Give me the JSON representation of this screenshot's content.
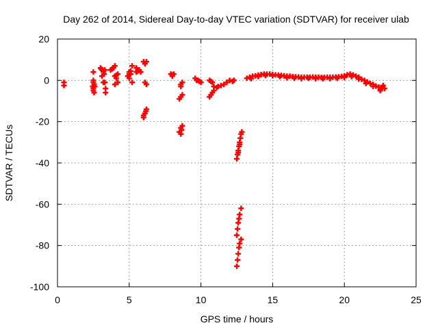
{
  "chart_data": {
    "type": "scatter",
    "title": "Day 262 of 2014, Sidereal Day-to-day VTEC variation (SDTVAR) for receiver ulab",
    "xlabel": "GPS time / hours",
    "ylabel": "SDTVAR / TECUs",
    "xlim": [
      0,
      25
    ],
    "ylim": [
      -100,
      20
    ],
    "xticks": [
      0,
      5,
      10,
      15,
      20,
      25
    ],
    "yticks": [
      20,
      0,
      -20,
      -40,
      -60,
      -80,
      -100
    ],
    "grid": true,
    "marker": "plus",
    "color": "#ff0000",
    "points": [
      [
        0.45,
        -1
      ],
      [
        0.45,
        -2.5
      ],
      [
        2.5,
        4
      ],
      [
        2.5,
        0
      ],
      [
        2.5,
        -1
      ],
      [
        2.55,
        -2
      ],
      [
        2.45,
        -3
      ],
      [
        2.5,
        -4
      ],
      [
        2.5,
        -5
      ],
      [
        2.55,
        -6
      ],
      [
        2.6,
        -3
      ],
      [
        3.0,
        6
      ],
      [
        3.05,
        5.5
      ],
      [
        3.1,
        5
      ],
      [
        3.2,
        4
      ],
      [
        3.25,
        3
      ],
      [
        3.1,
        2
      ],
      [
        3.2,
        -1
      ],
      [
        3.3,
        -1
      ],
      [
        3.35,
        -4
      ],
      [
        3.35,
        -6
      ],
      [
        3.3,
        5
      ],
      [
        3.7,
        5
      ],
      [
        3.8,
        5.5
      ],
      [
        3.9,
        6
      ],
      [
        4.0,
        7
      ],
      [
        4.2,
        3
      ],
      [
        4.1,
        2.5
      ],
      [
        4.0,
        2
      ],
      [
        4.1,
        1
      ],
      [
        4.2,
        -1
      ],
      [
        4.0,
        -2
      ],
      [
        4.9,
        2
      ],
      [
        5.0,
        3
      ],
      [
        5.0,
        4
      ],
      [
        5.1,
        3
      ],
      [
        5.0,
        1
      ],
      [
        5.2,
        7
      ],
      [
        5.2,
        -1
      ],
      [
        5.1,
        4.5
      ],
      [
        5.5,
        4
      ],
      [
        5.6,
        5
      ],
      [
        5.7,
        5
      ],
      [
        5.8,
        4
      ],
      [
        5.5,
        6
      ],
      [
        5.6,
        4.5
      ],
      [
        6.0,
        9
      ],
      [
        6.1,
        8
      ],
      [
        6.2,
        9
      ],
      [
        6.1,
        -1
      ],
      [
        6.2,
        -2
      ],
      [
        6.0,
        -17
      ],
      [
        6.1,
        -16
      ],
      [
        6.2,
        -14
      ],
      [
        6.0,
        -18
      ],
      [
        6.15,
        -15
      ],
      [
        7.9,
        3
      ],
      [
        8.0,
        2
      ],
      [
        8.1,
        3
      ],
      [
        8.0,
        2.5
      ],
      [
        8.6,
        -2
      ],
      [
        8.6,
        -3
      ],
      [
        8.7,
        -1
      ],
      [
        8.6,
        -8
      ],
      [
        8.7,
        -7
      ],
      [
        8.5,
        -9
      ],
      [
        8.6,
        -23
      ],
      [
        8.5,
        -25
      ],
      [
        8.7,
        -22
      ],
      [
        8.6,
        -26
      ],
      [
        8.65,
        -24
      ],
      [
        9.6,
        1
      ],
      [
        9.7,
        0
      ],
      [
        9.8,
        0
      ],
      [
        9.9,
        -0.5
      ],
      [
        10.0,
        -1
      ],
      [
        10.6,
        0
      ],
      [
        10.7,
        -0.5
      ],
      [
        10.8,
        -1
      ],
      [
        10.9,
        -3
      ],
      [
        10.7,
        -7
      ],
      [
        10.8,
        -6
      ],
      [
        10.9,
        -5
      ],
      [
        10.6,
        -8
      ],
      [
        11.1,
        -3.5
      ],
      [
        11.2,
        -3
      ],
      [
        11.4,
        -2.5
      ],
      [
        11.6,
        -2
      ],
      [
        11.8,
        -1
      ],
      [
        12.0,
        0
      ],
      [
        12.2,
        -0.5
      ],
      [
        12.3,
        0
      ],
      [
        12.5,
        -38
      ],
      [
        12.55,
        -36
      ],
      [
        12.6,
        -34
      ],
      [
        12.65,
        -32
      ],
      [
        12.7,
        -30
      ],
      [
        12.75,
        -28
      ],
      [
        12.8,
        -26
      ],
      [
        12.85,
        -25
      ],
      [
        12.6,
        -35
      ],
      [
        12.7,
        -31
      ],
      [
        12.5,
        -90
      ],
      [
        12.55,
        -87
      ],
      [
        12.6,
        -84
      ],
      [
        12.65,
        -81
      ],
      [
        12.7,
        -79
      ],
      [
        12.8,
        -77
      ],
      [
        12.5,
        -75
      ],
      [
        12.55,
        -72
      ],
      [
        12.6,
        -69
      ],
      [
        12.65,
        -67
      ],
      [
        12.7,
        -65
      ],
      [
        12.8,
        -62
      ],
      [
        13.2,
        1
      ],
      [
        13.4,
        1.5
      ],
      [
        13.6,
        2
      ],
      [
        13.8,
        2.2
      ],
      [
        14.0,
        2.5
      ],
      [
        14.2,
        2.8
      ],
      [
        14.4,
        3
      ],
      [
        14.6,
        3
      ],
      [
        14.8,
        3
      ],
      [
        15.0,
        2.8
      ],
      [
        15.2,
        2.6
      ],
      [
        15.4,
        2.5
      ],
      [
        15.6,
        2.4
      ],
      [
        15.8,
        2.2
      ],
      [
        16.0,
        2
      ],
      [
        16.2,
        2
      ],
      [
        16.4,
        1.8
      ],
      [
        16.6,
        1.7
      ],
      [
        16.8,
        1.6
      ],
      [
        17.0,
        1.5
      ],
      [
        17.2,
        1.5
      ],
      [
        17.4,
        1.5
      ],
      [
        17.6,
        1.5
      ],
      [
        17.8,
        1.6
      ],
      [
        18.0,
        1.5
      ],
      [
        18.2,
        1.5
      ],
      [
        18.4,
        1.4
      ],
      [
        18.6,
        1.4
      ],
      [
        18.8,
        1.5
      ],
      [
        19.0,
        1.5
      ],
      [
        19.2,
        1.5
      ],
      [
        19.4,
        1.6
      ],
      [
        19.6,
        1.7
      ],
      [
        19.8,
        1.9
      ],
      [
        20.0,
        2.2
      ],
      [
        20.2,
        2.7
      ],
      [
        20.4,
        3
      ],
      [
        20.6,
        2.6
      ],
      [
        20.8,
        2
      ],
      [
        21.0,
        1.5
      ],
      [
        21.2,
        0.5
      ],
      [
        21.4,
        0
      ],
      [
        21.6,
        -0.8
      ],
      [
        21.8,
        -1.5
      ],
      [
        22.0,
        -2
      ],
      [
        22.2,
        -2.8
      ],
      [
        22.4,
        -3.3
      ],
      [
        22.6,
        -3.8
      ],
      [
        22.8,
        -4
      ],
      [
        22.7,
        -2.5
      ],
      [
        22.5,
        -4.5
      ],
      [
        13.5,
        0.8
      ],
      [
        14.0,
        1.8
      ],
      [
        14.5,
        2.3
      ],
      [
        15.0,
        2.2
      ],
      [
        15.5,
        1.8
      ],
      [
        16.0,
        1.2
      ],
      [
        16.5,
        1
      ],
      [
        17.0,
        0.8
      ],
      [
        17.5,
        1
      ],
      [
        18.0,
        0.8
      ],
      [
        18.5,
        0.8
      ],
      [
        19.0,
        0.8
      ],
      [
        19.5,
        1
      ],
      [
        20.0,
        1.4
      ],
      [
        20.5,
        1.8
      ],
      [
        21.0,
        0.6
      ],
      [
        21.5,
        -1.5
      ],
      [
        22.0,
        -3
      ],
      [
        22.5,
        -5
      ]
    ]
  }
}
